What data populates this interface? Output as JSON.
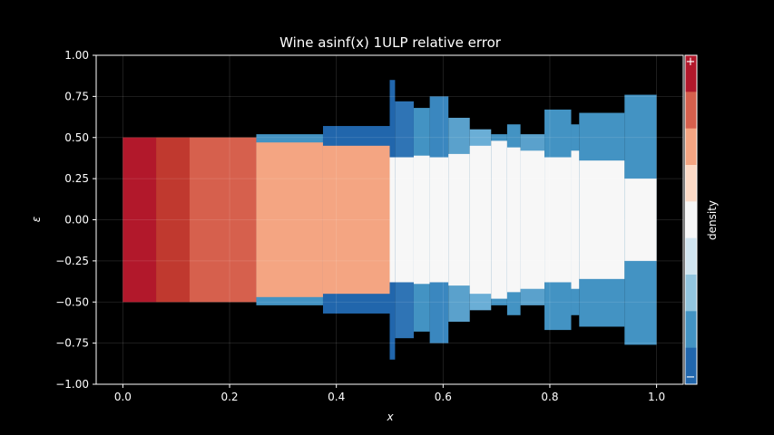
{
  "chart_data": {
    "type": "heatmap",
    "title": "Wine asinf(x) 1ULP relative error",
    "xlabel": "x",
    "ylabel": "ε",
    "xlim": [
      -0.05,
      1.05
    ],
    "ylim": [
      -1.0,
      1.0
    ],
    "x_ticks": [
      0.0,
      0.2,
      0.4,
      0.6,
      0.8,
      1.0
    ],
    "x_tick_labels": [
      "0.0",
      "0.2",
      "0.4",
      "0.6",
      "0.8",
      "1.0"
    ],
    "y_ticks": [
      1.0,
      0.75,
      0.5,
      0.25,
      0.0,
      -0.25,
      -0.5,
      -0.75,
      -1.0
    ],
    "y_tick_labels": [
      "1.00",
      "0.75",
      "0.50",
      "0.25",
      "0.00",
      "−0.25",
      "−0.50",
      "−0.75",
      "−1.00"
    ],
    "grid": true,
    "colorbar": {
      "label": "density",
      "top_label": "+",
      "bottom_label": "−",
      "colors": [
        "#b2182b",
        "#d6604d",
        "#f4a582",
        "#fddbc7",
        "#f7f7f7",
        "#d1e5f0",
        "#92c5de",
        "#4393c3",
        "#2166ac"
      ]
    },
    "regions": [
      {
        "x0": 0.0,
        "x1": 0.0625,
        "outer": 0.5,
        "inner": 0.5,
        "core_color": "#b2182b",
        "edge_color": "#b2182b"
      },
      {
        "x0": 0.0625,
        "x1": 0.125,
        "outer": 0.5,
        "inner": 0.5,
        "core_color": "#c0392f",
        "edge_color": "#c0392f"
      },
      {
        "x0": 0.125,
        "x1": 0.25,
        "outer": 0.5,
        "inner": 0.5,
        "core_color": "#d6604d",
        "edge_color": "#d6604d"
      },
      {
        "x0": 0.25,
        "x1": 0.375,
        "outer": 0.52,
        "inner": 0.47,
        "core_color": "#f4a582",
        "edge_color": "#4393c3"
      },
      {
        "x0": 0.375,
        "x1": 0.5,
        "outer": 0.57,
        "inner": 0.45,
        "core_color": "#f4a582",
        "edge_color": "#2166ac"
      },
      {
        "x0": 0.5,
        "x1": 0.51,
        "outer": 0.85,
        "inner": 0.38,
        "core_color": "#f7f7f7",
        "edge_color": "#2166ac"
      },
      {
        "x0": 0.51,
        "x1": 0.545,
        "outer": 0.72,
        "inner": 0.38,
        "core_color": "#f7f7f7",
        "edge_color": "#2f74b5"
      },
      {
        "x0": 0.545,
        "x1": 0.575,
        "outer": 0.68,
        "inner": 0.39,
        "core_color": "#f7f7f7",
        "edge_color": "#4393c3"
      },
      {
        "x0": 0.575,
        "x1": 0.61,
        "outer": 0.75,
        "inner": 0.38,
        "core_color": "#f7f7f7",
        "edge_color": "#3a87bf"
      },
      {
        "x0": 0.61,
        "x1": 0.65,
        "outer": 0.62,
        "inner": 0.4,
        "core_color": "#f7f7f7",
        "edge_color": "#5aa1cc"
      },
      {
        "x0": 0.65,
        "x1": 0.69,
        "outer": 0.55,
        "inner": 0.45,
        "core_color": "#f7f7f7",
        "edge_color": "#6aaed6"
      },
      {
        "x0": 0.69,
        "x1": 0.72,
        "outer": 0.52,
        "inner": 0.48,
        "core_color": "#f7f7f7",
        "edge_color": "#4393c3"
      },
      {
        "x0": 0.72,
        "x1": 0.745,
        "outer": 0.58,
        "inner": 0.44,
        "core_color": "#f7f7f7",
        "edge_color": "#4393c3"
      },
      {
        "x0": 0.745,
        "x1": 0.79,
        "outer": 0.52,
        "inner": 0.42,
        "core_color": "#f7f7f7",
        "edge_color": "#5aa1cc"
      },
      {
        "x0": 0.79,
        "x1": 0.84,
        "outer": 0.67,
        "inner": 0.38,
        "core_color": "#f7f7f7",
        "edge_color": "#4393c3"
      },
      {
        "x0": 0.84,
        "x1": 0.855,
        "outer": 0.58,
        "inner": 0.42,
        "core_color": "#f7f7f7",
        "edge_color": "#4393c3"
      },
      {
        "x0": 0.855,
        "x1": 0.94,
        "outer": 0.65,
        "inner": 0.36,
        "core_color": "#f7f7f7",
        "edge_color": "#4393c3"
      },
      {
        "x0": 0.94,
        "x1": 1.0,
        "outer": 0.76,
        "inner": 0.25,
        "core_color": "#f7f7f7",
        "edge_color": "#4393c3"
      }
    ]
  }
}
